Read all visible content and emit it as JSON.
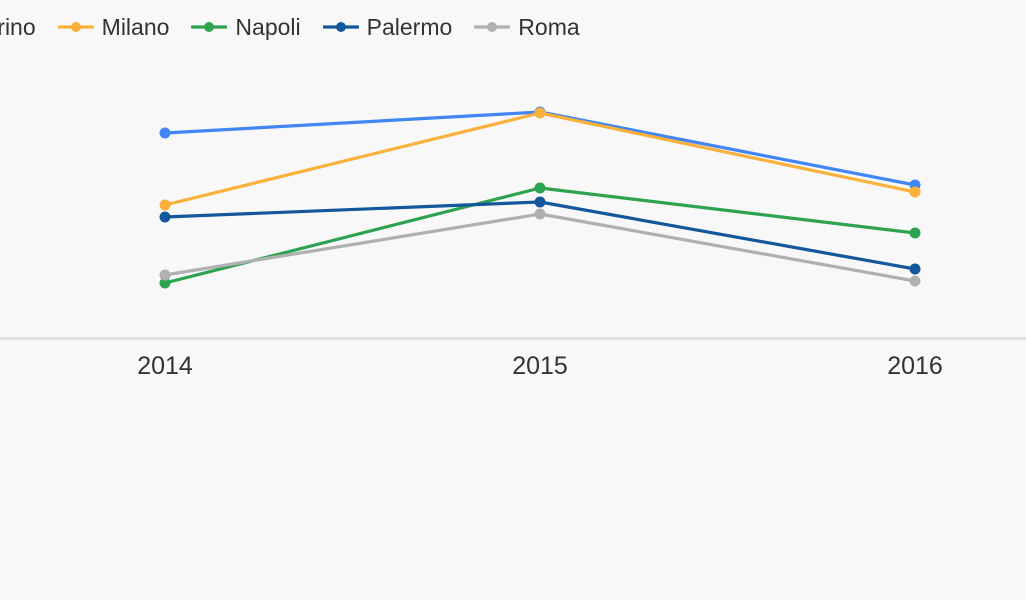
{
  "colors": {
    "background": "#F8F8F8",
    "axis_line": "#E0E0E0",
    "text": "#333333"
  },
  "legend": {
    "position": "top",
    "first_item_partially_clipped": true,
    "clipped_first_item_visible_text": "rino"
  },
  "chart_data": {
    "type": "line",
    "categories": [
      "2014",
      "2015",
      "2016"
    ],
    "series": [
      {
        "name": "Torino",
        "color": "#4285F4",
        "values": [
          206,
          227,
          154
        ]
      },
      {
        "name": "Milano",
        "color": "#F9B13C",
        "values": [
          134,
          226,
          147
        ]
      },
      {
        "name": "Napoli",
        "color": "#2EA34F",
        "values": [
          56,
          151,
          106
        ]
      },
      {
        "name": "Palermo",
        "color": "#14589C",
        "values": [
          122,
          137,
          70
        ]
      },
      {
        "name": "Roma",
        "color": "#B0B0B0",
        "values": [
          64,
          125,
          58
        ]
      }
    ],
    "title": "",
    "xlabel": "",
    "ylabel": "",
    "ylim": [
      0,
      260
    ],
    "y_axis_visible": false,
    "grid": false,
    "legend_position": "top",
    "marker": "circle",
    "notes": "No y-axis ticks visible; values are estimated relative units (pixels above baseline)."
  }
}
